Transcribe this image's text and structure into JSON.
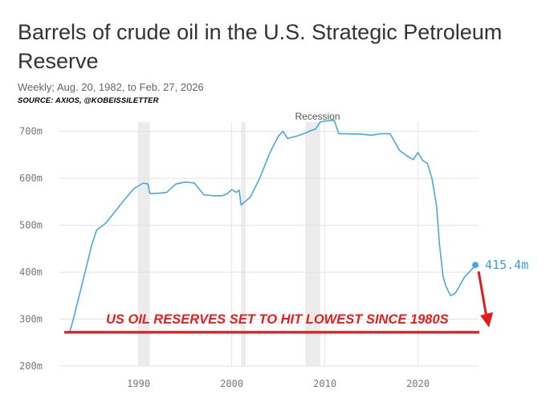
{
  "chart_data": {
    "type": "line",
    "title": "Barrels of crude oil in the U.S. Strategic Petroleum Reserve",
    "subtitle": "Weekly; Aug. 20, 1982, to Feb. 27, 2026",
    "source": "SOURCE: AXIOS, @KOBEISSILETTER",
    "xlim": [
      1981.5,
      2026.5
    ],
    "ylim": [
      200,
      720
    ],
    "x_ticks": [
      {
        "value": 1990,
        "label": "1990"
      },
      {
        "value": 2000,
        "label": "2000"
      },
      {
        "value": 2010,
        "label": "2010"
      },
      {
        "value": 2020,
        "label": "2020"
      }
    ],
    "y_ticks": [
      {
        "value": 200,
        "label": "200m"
      },
      {
        "value": 300,
        "label": "300m"
      },
      {
        "value": 400,
        "label": "400m"
      },
      {
        "value": 500,
        "label": "500m"
      },
      {
        "value": 600,
        "label": "600m"
      },
      {
        "value": 700,
        "label": "700m"
      }
    ],
    "grid": true,
    "recessions": [
      {
        "start": 1990.0,
        "end": 1991.2
      },
      {
        "start": 2001.0,
        "end": 2001.5
      },
      {
        "start": 2007.9,
        "end": 2009.5,
        "label": "Recession"
      }
    ],
    "series": [
      {
        "color": "#4aa8e0",
        "x": [
          1982.6,
          1983.0,
          1983.5,
          1984.0,
          1984.5,
          1985.0,
          1985.5,
          1986.5,
          1987.5,
          1988.5,
          1989.5,
          1990.5,
          1991.0,
          1991.2,
          1992.0,
          1993.0,
          1994.0,
          1995.0,
          1996.0,
          1997.0,
          1998.0,
          1999.0,
          1999.5,
          2000.0,
          2000.5,
          2000.8,
          2001.0,
          2002.0,
          2003.0,
          2004.0,
          2005.0,
          2005.5,
          2006.0,
          2007.0,
          2008.0,
          2008.5,
          2009.0,
          2009.5,
          2010.0,
          2011.0,
          2011.5,
          2012.0,
          2014.0,
          2015.0,
          2016.0,
          2017.0,
          2018.0,
          2019.0,
          2019.5,
          2020.0,
          2020.5,
          2021.0,
          2021.5,
          2022.0,
          2022.3,
          2022.7,
          2023.0,
          2023.5,
          2024.0,
          2024.5,
          2025.0,
          2025.5,
          2026.16
        ],
        "values": [
          272,
          300,
          340,
          380,
          420,
          460,
          490,
          505,
          530,
          555,
          578,
          590,
          588,
          568,
          568,
          570,
          588,
          592,
          590,
          565,
          563,
          563,
          567,
          576,
          570,
          575,
          543,
          560,
          600,
          650,
          690,
          700,
          685,
          690,
          697,
          702,
          705,
          720,
          722,
          724,
          695,
          695,
          694,
          692,
          695,
          695,
          660,
          645,
          640,
          655,
          638,
          632,
          600,
          540,
          460,
          390,
          370,
          350,
          355,
          372,
          390,
          400,
          415.4
        ]
      }
    ],
    "end_label": "415.4m",
    "reference_line": {
      "value": 272
    },
    "annotation": "US OIL RESERVES SET TO HIT LOWEST SINCE 1980S"
  }
}
